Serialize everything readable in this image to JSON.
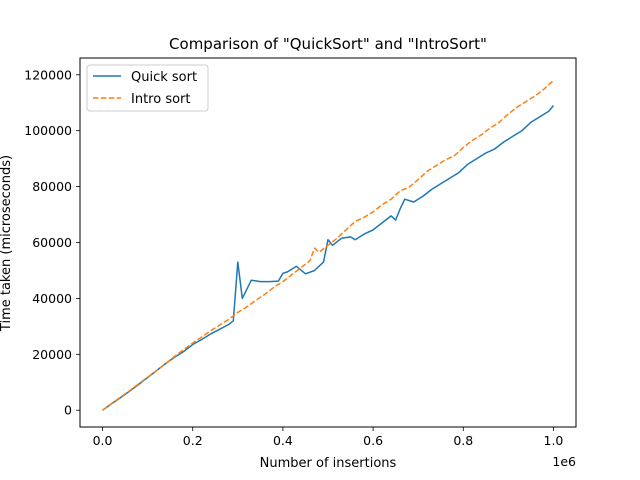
{
  "chart_data": {
    "type": "line",
    "title": "Comparison of \"QuickSort\" and \"IntroSort\"",
    "xlabel": "Number of insertions",
    "ylabel": "Time taken (microseconds)",
    "x_offset_label": "1e6",
    "xlim": [
      -0.05,
      1.05
    ],
    "ylim": [
      -6000,
      126000
    ],
    "xticks": [
      0.0,
      0.2,
      0.4,
      0.6,
      0.8,
      1.0
    ],
    "xtick_labels": [
      "0.0",
      "0.2",
      "0.4",
      "0.6",
      "0.8",
      "1.0"
    ],
    "yticks": [
      0,
      20000,
      40000,
      60000,
      80000,
      100000,
      120000
    ],
    "ytick_labels": [
      "0",
      "20000",
      "40000",
      "60000",
      "80000",
      "100000",
      "120000"
    ],
    "grid": false,
    "legend_position": "upper-left",
    "series": [
      {
        "name": "Quick sort",
        "color": "#1f77b4",
        "style": "solid",
        "x": [
          0,
          0.02,
          0.04,
          0.06,
          0.08,
          0.1,
          0.12,
          0.14,
          0.16,
          0.18,
          0.2,
          0.22,
          0.24,
          0.26,
          0.28,
          0.29,
          0.3,
          0.31,
          0.33,
          0.35,
          0.37,
          0.39,
          0.4,
          0.41,
          0.43,
          0.45,
          0.47,
          0.49,
          0.5,
          0.51,
          0.53,
          0.55,
          0.56,
          0.58,
          0.6,
          0.62,
          0.64,
          0.65,
          0.66,
          0.67,
          0.69,
          0.71,
          0.73,
          0.75,
          0.77,
          0.79,
          0.81,
          0.83,
          0.85,
          0.87,
          0.89,
          0.91,
          0.93,
          0.95,
          0.97,
          0.99,
          1.0
        ],
        "y": [
          0,
          2300,
          4500,
          6800,
          9200,
          11700,
          14200,
          16700,
          19000,
          21000,
          23500,
          25300,
          27300,
          29000,
          30700,
          32000,
          53000,
          40000,
          46500,
          46000,
          46000,
          46200,
          49000,
          49500,
          51500,
          48800,
          50000,
          53000,
          61000,
          59000,
          61500,
          62000,
          61000,
          63000,
          64500,
          67000,
          69500,
          68000,
          72000,
          75500,
          74500,
          76500,
          79000,
          81000,
          83000,
          85000,
          88000,
          90000,
          92000,
          93500,
          96000,
          98000,
          100000,
          103000,
          105000,
          107000,
          109000
        ]
      },
      {
        "name": "Intro sort",
        "color": "#ff7f0e",
        "style": "dashed",
        "x": [
          0,
          0.02,
          0.04,
          0.06,
          0.08,
          0.1,
          0.12,
          0.14,
          0.16,
          0.18,
          0.2,
          0.22,
          0.24,
          0.26,
          0.28,
          0.3,
          0.32,
          0.34,
          0.36,
          0.38,
          0.4,
          0.42,
          0.44,
          0.46,
          0.47,
          0.48,
          0.5,
          0.52,
          0.54,
          0.56,
          0.58,
          0.6,
          0.62,
          0.64,
          0.66,
          0.68,
          0.7,
          0.72,
          0.74,
          0.76,
          0.78,
          0.8,
          0.82,
          0.84,
          0.86,
          0.88,
          0.9,
          0.92,
          0.94,
          0.96,
          0.98,
          1.0
        ],
        "y": [
          0,
          2400,
          4700,
          7000,
          9400,
          11800,
          14200,
          16700,
          19300,
          21700,
          24000,
          26200,
          28500,
          30500,
          32500,
          35000,
          37000,
          39300,
          41500,
          44000,
          46000,
          48500,
          51000,
          53500,
          58000,
          56500,
          59000,
          61500,
          64500,
          67500,
          69000,
          71000,
          73500,
          75500,
          78500,
          79800,
          82500,
          85500,
          87500,
          89500,
          91000,
          94000,
          96500,
          98500,
          101000,
          103000,
          106000,
          108500,
          110500,
          112500,
          115000,
          118000
        ]
      }
    ]
  }
}
